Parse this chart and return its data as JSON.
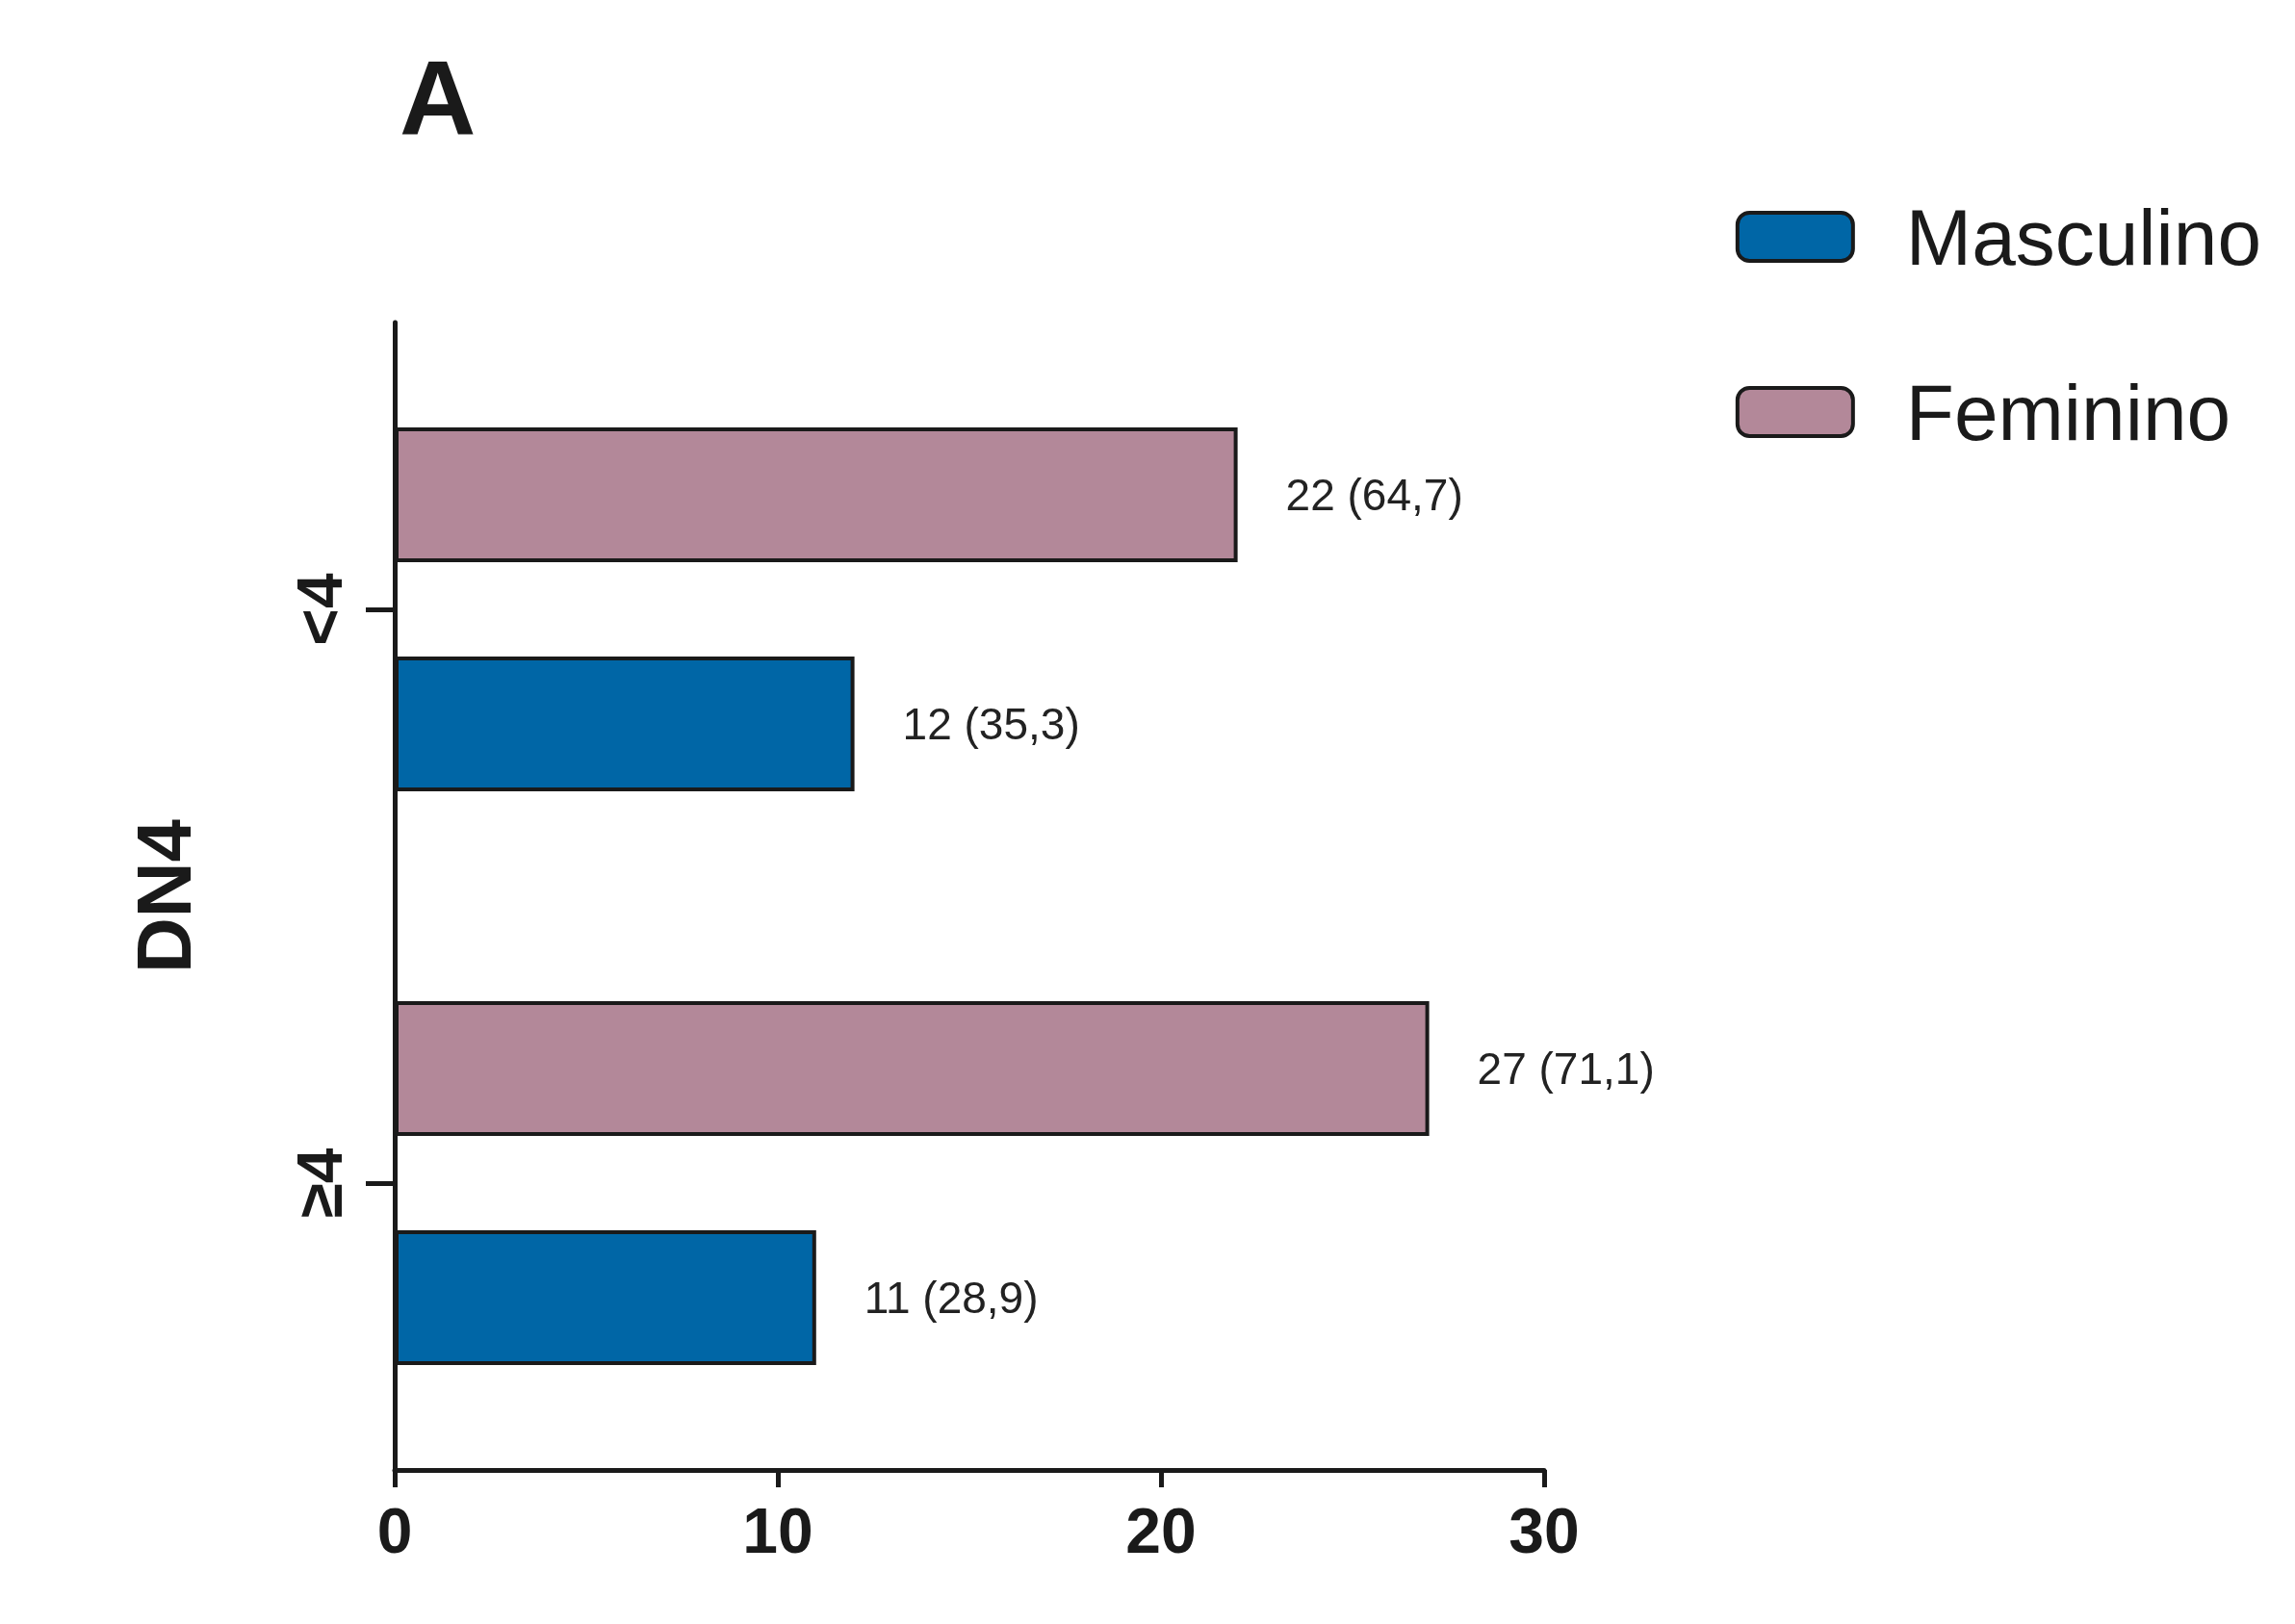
{
  "chart_data": {
    "type": "bar",
    "orientation": "horizontal",
    "title": "A",
    "ylabel": "DN4",
    "categories": [
      "<4",
      "≥4"
    ],
    "series": [
      {
        "name": "Masculino",
        "color": "#0066a6",
        "values": [
          12,
          11
        ],
        "value_labels": [
          "12 (35,3)",
          "11 (28,9)"
        ]
      },
      {
        "name": "Feminino",
        "color": "#b38899",
        "values": [
          22,
          27
        ],
        "value_labels": [
          "22 (64,7)",
          "27 (71,1)"
        ]
      }
    ],
    "xlim": [
      0,
      30
    ],
    "xticks": [
      0,
      10,
      20,
      30
    ],
    "grid": false,
    "legend": "top right"
  }
}
